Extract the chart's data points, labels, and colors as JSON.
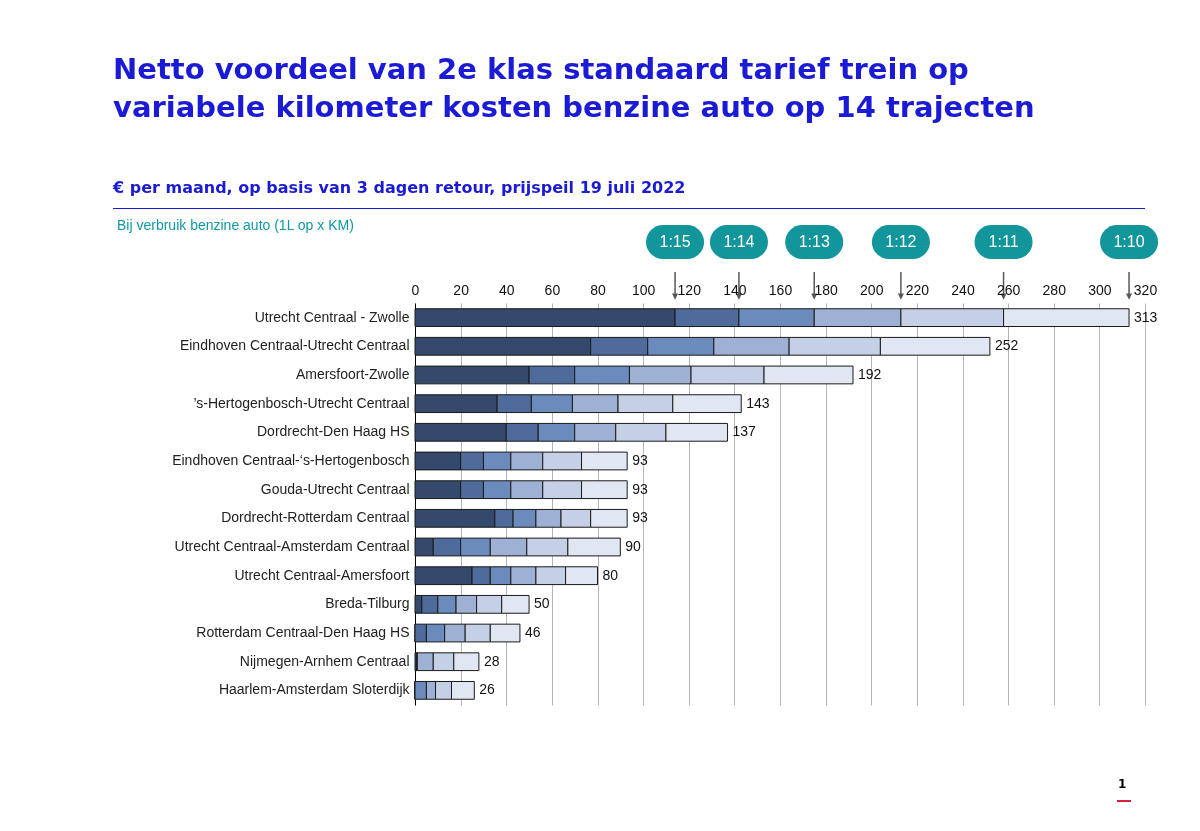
{
  "chart_data": {
    "type": "bar",
    "orientation": "horizontal",
    "stacked": true,
    "title": "Netto voordeel van 2e klas standaard tarief trein op variabele kilometer kosten benzine auto op 14 trajecten",
    "subtitle": "€ per maand, op basis van 3 dagen retour, prijspeil 19 juli 2022",
    "legend_title": "Bij verbruik benzine auto (1L op x KM)",
    "categories": [
      "Utrecht Centraal - Zwolle",
      "Eindhoven Centraal-Utrecht Centraal",
      "Amersfoort-Zwolle",
      "’s-Hertogenbosch-Utrecht Centraal",
      "Dordrecht-Den Haag HS",
      "Eindhoven Centraal-‘s-Hertogenbosch",
      "Gouda-Utrecht Centraal",
      "Dordrecht-Rotterdam Centraal",
      "Utrecht Centraal-Amsterdam Centraal",
      "Utrecht Centraal-Amersfoort",
      "Breda-Tilburg",
      "Rotterdam Centraal-Den Haag HS",
      "Nijmegen-Arnhem Centraal",
      "Haarlem-Amsterdam Sloterdijk"
    ],
    "series": [
      {
        "name": "1:15",
        "color": "#34496b",
        "values": [
          114,
          77,
          50,
          36,
          40,
          20,
          20,
          35,
          8,
          25,
          3,
          0,
          1,
          0
        ]
      },
      {
        "name": "1:14",
        "color": "#4e6b9c",
        "values": [
          28,
          25,
          20,
          15,
          14,
          10,
          10,
          8,
          12,
          8,
          7,
          5,
          0,
          0
        ]
      },
      {
        "name": "1:13",
        "color": "#6c8bbd",
        "values": [
          33,
          29,
          24,
          18,
          16,
          12,
          12,
          10,
          13,
          9,
          8,
          8,
          0,
          5
        ]
      },
      {
        "name": "1:12",
        "color": "#9eb0d3",
        "values": [
          38,
          33,
          27,
          20,
          18,
          14,
          14,
          11,
          16,
          11,
          9,
          9,
          7,
          4
        ]
      },
      {
        "name": "1:11",
        "color": "#c5d0e6",
        "values": [
          45,
          40,
          32,
          24,
          22,
          17,
          17,
          13,
          18,
          13,
          11,
          11,
          9,
          7
        ]
      },
      {
        "name": "1:10",
        "color": "#e0e6f2",
        "values": [
          55,
          48,
          39,
          30,
          27,
          20,
          20,
          16,
          23,
          14,
          12,
          13,
          11,
          10
        ]
      }
    ],
    "totals": [
      "313",
      "252",
      "192",
      "143",
      "137",
      "93",
      "93",
      "93",
      "90",
      "80",
      "50",
      "46",
      "28",
      "26"
    ],
    "xlim": [
      0,
      320
    ],
    "xticks": [
      0,
      20,
      40,
      60,
      80,
      100,
      120,
      140,
      160,
      180,
      200,
      220,
      240,
      260,
      280,
      300,
      320
    ],
    "grid": "x",
    "legend": false,
    "annotations": [
      "1"
    ]
  }
}
